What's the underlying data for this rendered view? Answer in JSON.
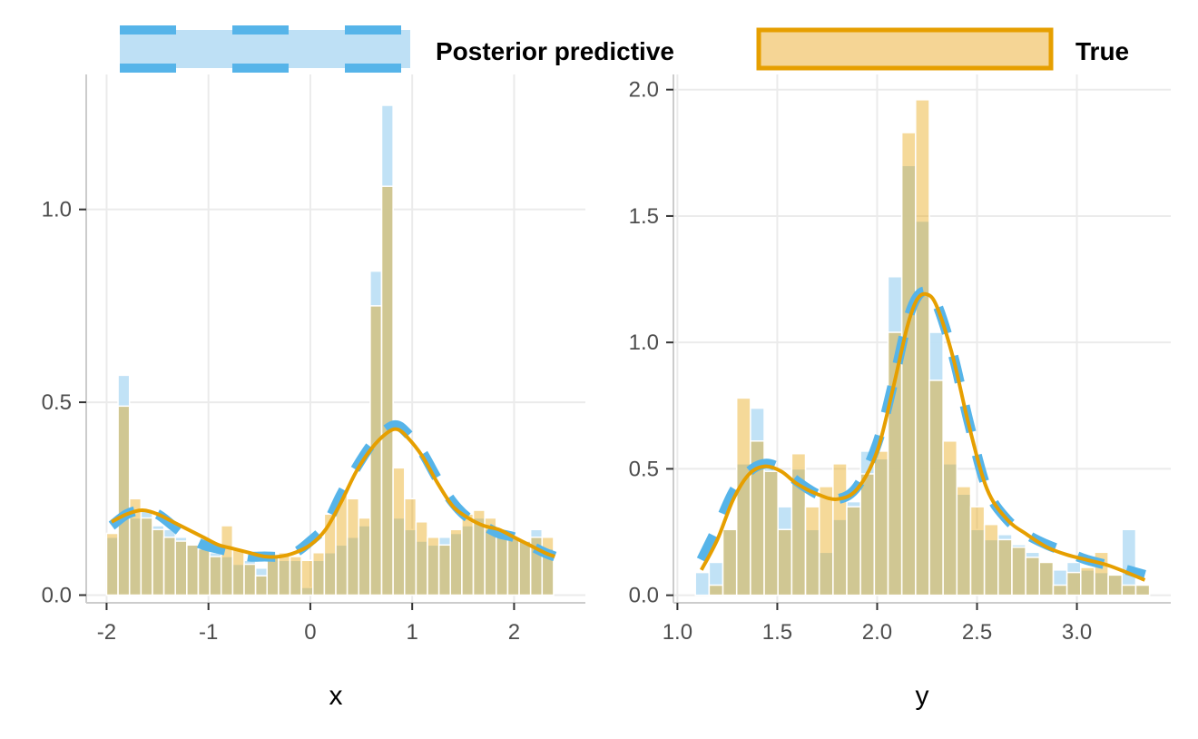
{
  "legend": {
    "items": [
      {
        "label": "Posterior predictive",
        "fill": "#BEE0F5",
        "stroke": "#56B4E9",
        "dashed": true
      },
      {
        "label": "True",
        "fill": "#F5D595",
        "stroke": "#E69F00",
        "dashed": false
      }
    ]
  },
  "chart_data": [
    {
      "type": "histogram",
      "xlabel": "x",
      "ylabel": "",
      "xlim": [
        -2.2,
        2.7
      ],
      "ylim": [
        -0.02,
        1.35
      ],
      "xticks": [
        -2,
        -1,
        0,
        1,
        2
      ],
      "xtick_labels": [
        "-2",
        "-1",
        "0",
        "1",
        "2"
      ],
      "yticks": [
        0,
        0.5,
        1
      ],
      "ytick_labels": [
        "0.0",
        "0.5",
        "1.0"
      ],
      "bin_edges": [
        -2.0,
        -1.8875,
        -1.775,
        -1.6625,
        -1.55,
        -1.4375,
        -1.325,
        -1.2125,
        -1.1,
        -0.9875,
        -0.875,
        -0.7625,
        -0.65,
        -0.5375,
        -0.425,
        -0.3125,
        -0.2,
        -0.0875,
        0.025,
        0.1375,
        0.25,
        0.3625,
        0.475,
        0.5875,
        0.7,
        0.8125,
        0.925,
        1.0375,
        1.15,
        1.2625,
        1.375,
        1.4875,
        1.6,
        1.7125,
        1.825,
        1.9375,
        2.05,
        2.1625,
        2.275,
        2.3875
      ],
      "series": [
        {
          "name": "Posterior predictive",
          "values": [
            0.15,
            0.57,
            0.2,
            0.22,
            0.18,
            0.17,
            0.15,
            0.13,
            0.12,
            0.11,
            0.1,
            0.08,
            0.09,
            0.07,
            0.1,
            0.09,
            0.09,
            0.02,
            0.09,
            0.11,
            0.13,
            0.15,
            0.18,
            0.84,
            1.27,
            0.2,
            0.17,
            0.14,
            0.13,
            0.15,
            0.16,
            0.18,
            0.2,
            0.17,
            0.16,
            0.15,
            0.14,
            0.17,
            0.12
          ],
          "density": {
            "x": [
              -1.95,
              -1.8,
              -1.65,
              -1.5,
              -1.35,
              -1.2,
              -1.05,
              -0.9,
              -0.75,
              -0.6,
              -0.45,
              -0.3,
              -0.15,
              0.0,
              0.15,
              0.3,
              0.45,
              0.6,
              0.75,
              0.85,
              0.95,
              1.1,
              1.25,
              1.4,
              1.55,
              1.7,
              1.85,
              2.0,
              2.15,
              2.3,
              2.4
            ],
            "y": [
              0.18,
              0.21,
              0.22,
              0.21,
              0.18,
              0.15,
              0.13,
              0.12,
              0.11,
              0.1,
              0.1,
              0.1,
              0.11,
              0.14,
              0.18,
              0.26,
              0.33,
              0.39,
              0.43,
              0.44,
              0.42,
              0.37,
              0.3,
              0.24,
              0.2,
              0.18,
              0.16,
              0.15,
              0.13,
              0.11,
              0.1
            ]
          }
        },
        {
          "name": "True",
          "values": [
            0.16,
            0.49,
            0.25,
            0.2,
            0.17,
            0.15,
            0.14,
            0.13,
            0.12,
            0.1,
            0.18,
            0.12,
            0.08,
            0.05,
            0.1,
            0.11,
            0.1,
            0.09,
            0.11,
            0.21,
            0.26,
            0.25,
            0.2,
            0.75,
            1.06,
            0.33,
            0.25,
            0.19,
            0.15,
            0.13,
            0.17,
            0.21,
            0.22,
            0.2,
            0.17,
            0.15,
            0.14,
            0.15,
            0.15
          ],
          "density": {
            "x": [
              -1.95,
              -1.8,
              -1.65,
              -1.5,
              -1.35,
              -1.2,
              -1.05,
              -0.9,
              -0.75,
              -0.6,
              -0.45,
              -0.3,
              -0.15,
              0.0,
              0.15,
              0.3,
              0.45,
              0.6,
              0.75,
              0.85,
              0.95,
              1.1,
              1.25,
              1.4,
              1.55,
              1.7,
              1.85,
              2.0,
              2.15,
              2.3,
              2.4
            ],
            "y": [
              0.19,
              0.21,
              0.22,
              0.21,
              0.19,
              0.17,
              0.15,
              0.13,
              0.12,
              0.11,
              0.1,
              0.1,
              0.11,
              0.13,
              0.17,
              0.24,
              0.32,
              0.38,
              0.42,
              0.43,
              0.41,
              0.36,
              0.29,
              0.23,
              0.2,
              0.18,
              0.17,
              0.15,
              0.13,
              0.11,
              0.1
            ]
          }
        }
      ]
    },
    {
      "type": "histogram",
      "xlabel": "y",
      "ylabel": "",
      "xlim": [
        0.98,
        3.47
      ],
      "ylim": [
        -0.03,
        2.06
      ],
      "xticks": [
        1.0,
        1.5,
        2.0,
        2.5,
        3.0
      ],
      "xtick_labels": [
        "1.0",
        "1.5",
        "2.0",
        "2.5",
        "3.0"
      ],
      "yticks": [
        0,
        0.5,
        1,
        1.5,
        2
      ],
      "ytick_labels": [
        "0.0",
        "0.5",
        "1.0",
        "1.5",
        "2.0"
      ],
      "bin_edges": [
        1.09,
        1.1589,
        1.2278,
        1.2967,
        1.3656,
        1.4345,
        1.5034,
        1.5723,
        1.6412,
        1.7101,
        1.779,
        1.8479,
        1.9168,
        1.9857,
        2.0546,
        2.1235,
        2.1924,
        2.2613,
        2.3302,
        2.3991,
        2.468,
        2.5369,
        2.6058,
        2.6747,
        2.7436,
        2.8125,
        2.8814,
        2.9503,
        3.0192,
        3.0881,
        3.157,
        3.2259,
        3.2948,
        3.3637
      ],
      "series": [
        {
          "name": "Posterior predictive",
          "values": [
            0.09,
            0.13,
            0.26,
            0.52,
            0.74,
            0.5,
            0.35,
            0.5,
            0.26,
            0.17,
            0.3,
            0.37,
            0.57,
            0.54,
            1.26,
            1.7,
            1.48,
            1.04,
            0.52,
            0.4,
            0.26,
            0.22,
            0.24,
            0.2,
            0.17,
            0.13,
            0.1,
            0.13,
            0.1,
            0.09,
            0.08,
            0.26,
            0.04
          ],
          "density": {
            "x": [
              1.12,
              1.2,
              1.28,
              1.36,
              1.44,
              1.52,
              1.6,
              1.7,
              1.8,
              1.9,
              2.0,
              2.08,
              2.15,
              2.2,
              2.25,
              2.3,
              2.38,
              2.46,
              2.55,
              2.65,
              2.75,
              2.85,
              2.95,
              3.05,
              3.15,
              3.25,
              3.34
            ],
            "y": [
              0.14,
              0.27,
              0.41,
              0.49,
              0.52,
              0.5,
              0.45,
              0.4,
              0.38,
              0.43,
              0.6,
              0.84,
              1.08,
              1.18,
              1.2,
              1.15,
              0.95,
              0.68,
              0.42,
              0.3,
              0.24,
              0.2,
              0.17,
              0.14,
              0.12,
              0.1,
              0.08
            ]
          }
        },
        {
          "name": "True",
          "values": [
            0.0,
            0.04,
            0.26,
            0.78,
            0.61,
            0.49,
            0.26,
            0.56,
            0.35,
            0.43,
            0.52,
            0.35,
            0.48,
            0.57,
            1.04,
            1.83,
            1.96,
            0.85,
            0.61,
            0.43,
            0.35,
            0.28,
            0.22,
            0.19,
            0.15,
            0.13,
            0.04,
            0.09,
            0.11,
            0.17,
            0.08,
            0.04,
            0.04
          ],
          "density": {
            "x": [
              1.12,
              1.2,
              1.28,
              1.36,
              1.44,
              1.52,
              1.6,
              1.7,
              1.8,
              1.9,
              2.0,
              2.08,
              2.15,
              2.2,
              2.25,
              2.3,
              2.38,
              2.46,
              2.55,
              2.65,
              2.75,
              2.85,
              2.95,
              3.05,
              3.15,
              3.25,
              3.34
            ],
            "y": [
              0.1,
              0.22,
              0.38,
              0.48,
              0.51,
              0.49,
              0.44,
              0.4,
              0.38,
              0.42,
              0.57,
              0.82,
              1.06,
              1.17,
              1.19,
              1.14,
              0.94,
              0.67,
              0.42,
              0.3,
              0.24,
              0.19,
              0.16,
              0.14,
              0.12,
              0.09,
              0.06
            ]
          }
        }
      ]
    }
  ]
}
